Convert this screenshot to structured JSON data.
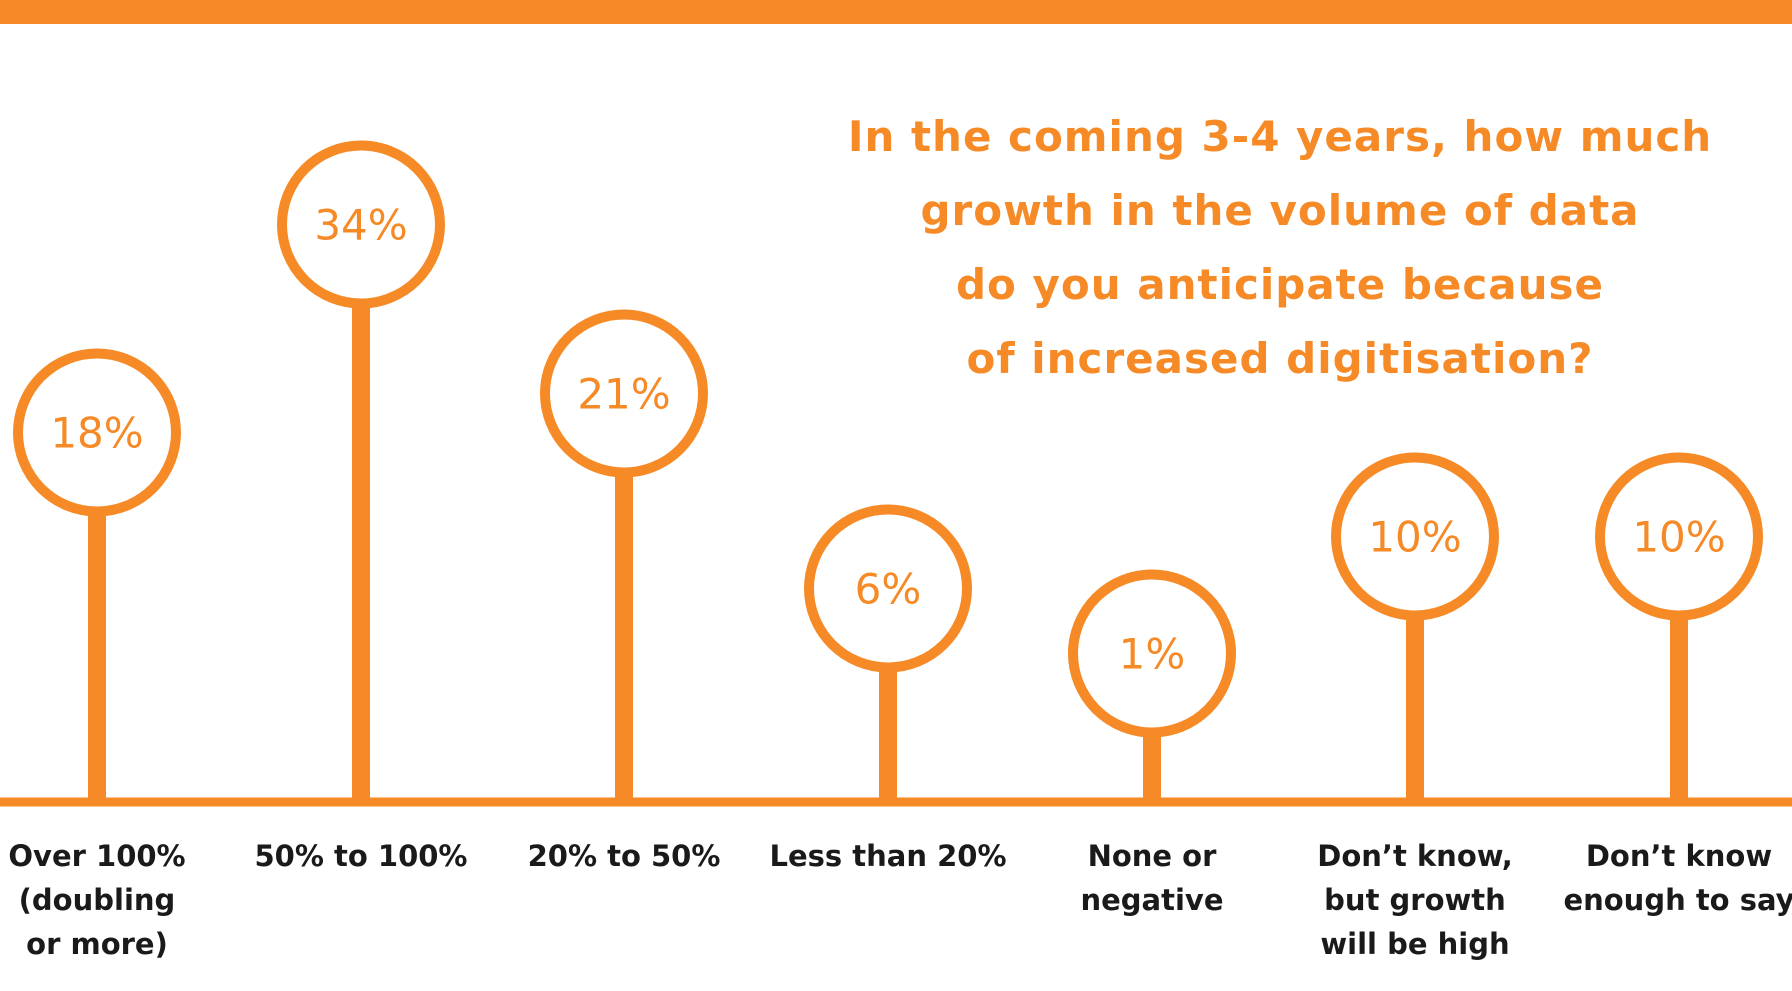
{
  "title_lines": [
    "In the coming 3-4 years, how much",
    "growth in the volume of data",
    "do you anticipate because",
    "of increased digitisation?"
  ],
  "colors": {
    "accent": "#F58A26",
    "label_text": "#1a1a1a",
    "background": "#ffffff"
  },
  "chart_data": {
    "type": "lollipop",
    "title": "In the coming 3-4 years, how much growth in the volume of data do you anticipate because of increased digitisation?",
    "categories": [
      [
        "Over 100%",
        "(doubling",
        "or more)"
      ],
      [
        "50% to 100%"
      ],
      [
        "20% to 50%"
      ],
      [
        "Less than 20%"
      ],
      [
        "None or",
        "negative"
      ],
      [
        "Don’t know,",
        "but growth",
        "will be high"
      ],
      [
        "Don’t know",
        "enough to say"
      ]
    ],
    "values": [
      18,
      34,
      21,
      6,
      1,
      10,
      10
    ],
    "value_labels": [
      "18%",
      "34%",
      "21%",
      "6%",
      "1%",
      "10%",
      "10%"
    ],
    "unit": "%",
    "grid": false,
    "legend": "none"
  }
}
